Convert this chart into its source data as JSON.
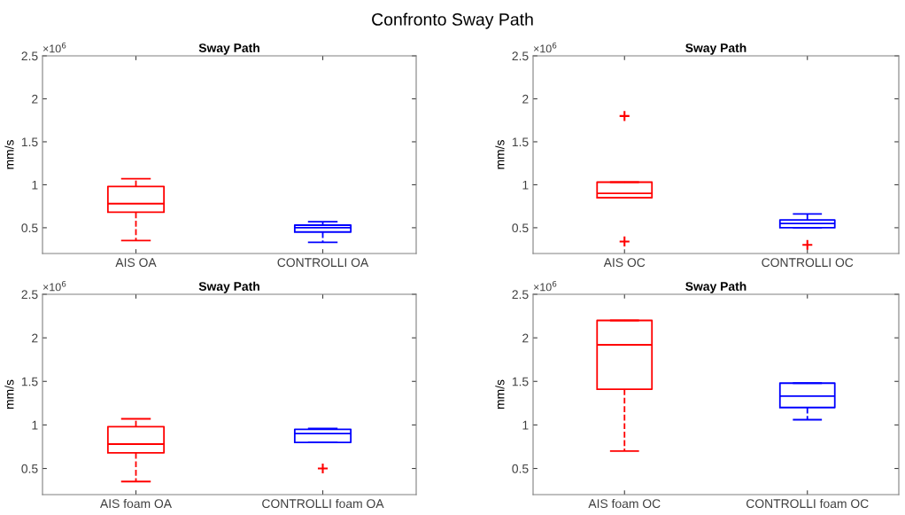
{
  "chart_data": [
    {
      "type": "box",
      "subtitle": "Confronto Sway Path",
      "title": "Sway Path",
      "ylabel": "mm/s",
      "categories": [
        "AIS OA",
        "CONTROLLI OA"
      ],
      "ylim": [
        0.2,
        2.5
      ],
      "yticks": [
        0.5,
        1,
        1.5,
        2,
        2.5
      ],
      "annotations": [
        "×10$^{6}$"
      ],
      "grid": false,
      "line_style": "dashed",
      "series": [
        {
          "type": "box",
          "colors": [
            "#ff0000",
            "#0000ff"
          ],
          "boxes": [
            {
              "low": 0.35,
              "q1": 0.68,
              "median": 0.78,
              "q3": 0.98,
              "high": 1.07
            },
            {
              "low": 0.33,
              "q1": 0.45,
              "median": 0.5,
              "q3": 0.53,
              "high": 0.57
            }
          ]
        }
      ]
    },
    {
      "type": "box",
      "title": "Sway Path",
      "ylabel": "mm/s",
      "categories": [
        "AIS OC",
        "CONTROLLI OC"
      ],
      "ylim": [
        0.2,
        2.5
      ],
      "yticks": [
        0.5,
        1,
        1.5,
        2,
        2.5
      ],
      "annotations": [
        "×10$^{6}$"
      ],
      "grid": false,
      "line_style": "dashed",
      "series": [
        {
          "type": "box",
          "colors": [
            "#ff0000",
            "#0000ff"
          ],
          "boxes": [
            {
              "low": 0.85,
              "q1": 0.85,
              "median": 0.9,
              "q3": 1.03,
              "high": 1.03
            },
            {
              "low": 0.5,
              "q1": 0.5,
              "median": 0.55,
              "q3": 0.59,
              "high": 0.66
            }
          ]
        },
        {
          "type": "scatter",
          "color": "#ff0000",
          "marker": "cross",
          "x": [
            "AIS OC",
            "AIS OC",
            "CONTROLLI OC"
          ],
          "values": [
            1.8,
            0.34,
            0.3
          ]
        }
      ]
    },
    {
      "type": "box",
      "title": "Sway Path",
      "ylabel": "mm/s",
      "categories": [
        "AIS foam OA",
        "CONTROLLI foam OA"
      ],
      "ylim": [
        0.2,
        2.5
      ],
      "yticks": [
        0.5,
        1,
        1.5,
        2,
        2.5
      ],
      "annotations": [
        "×10$^{6}$"
      ],
      "grid": false,
      "line_style": "dashed",
      "series": [
        {
          "type": "box",
          "colors": [
            "#ff0000",
            "#0000ff"
          ],
          "boxes": [
            {
              "low": 0.35,
              "q1": 0.68,
              "median": 0.78,
              "q3": 0.98,
              "high": 1.07
            },
            {
              "low": 0.8,
              "q1": 0.8,
              "median": 0.9,
              "q3": 0.95,
              "high": 0.96
            }
          ]
        },
        {
          "type": "scatter",
          "color": "#ff0000",
          "marker": "cross",
          "x": [
            "CONTROLLI foam OA"
          ],
          "values": [
            0.5
          ]
        }
      ]
    },
    {
      "type": "box",
      "title": "Sway Path",
      "ylabel": "mm/s",
      "categories": [
        "AIS foam OC",
        "CONTROLLI foam OC"
      ],
      "ylim": [
        0.2,
        2.5
      ],
      "yticks": [
        0.5,
        1,
        1.5,
        2,
        2.5
      ],
      "annotations": [
        "×10$^{6}$"
      ],
      "grid": false,
      "line_style": "dashed",
      "series": [
        {
          "type": "box",
          "colors": [
            "#ff0000",
            "#0000ff"
          ],
          "boxes": [
            {
              "low": 0.7,
              "q1": 1.41,
              "median": 1.92,
              "q3": 2.2,
              "high": 2.2
            },
            {
              "low": 1.06,
              "q1": 1.2,
              "median": 1.33,
              "q3": 1.48,
              "high": 1.48
            }
          ]
        }
      ]
    }
  ]
}
